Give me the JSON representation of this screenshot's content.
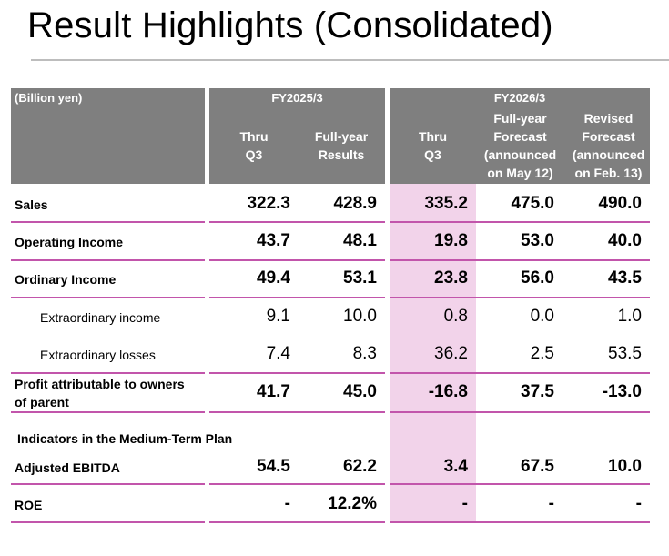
{
  "title": "Result Highlights (Consolidated)",
  "unit_label": "(Billion yen)",
  "fy2025": {
    "period": "FY2025/3",
    "cols": [
      {
        "line1": "Thru",
        "line2": "Q3"
      },
      {
        "line1": "Full-year",
        "line2": "Results"
      }
    ]
  },
  "fy2026": {
    "period": "FY2026/3",
    "cols": [
      {
        "line1": "Thru",
        "line2": "Q3"
      },
      {
        "line1": "Full-year",
        "line2": "Forecast",
        "line3": "(announced",
        "line4": "on May 12)"
      },
      {
        "line1": "Revised",
        "line2": "Forecast",
        "line3": "(announced",
        "line4": "on Feb. 13)"
      }
    ]
  },
  "rows": [
    {
      "label": "Sales",
      "values": [
        "322.3",
        "428.9",
        "335.2",
        "475.0",
        "490.0"
      ]
    },
    {
      "label": "Operating Income",
      "values": [
        "43.7",
        "48.1",
        "19.8",
        "53.0",
        "40.0"
      ]
    },
    {
      "label": "Ordinary Income",
      "values": [
        "49.4",
        "53.1",
        "23.8",
        "56.0",
        "43.5"
      ]
    },
    {
      "label": "Extraordinary income",
      "values": [
        "9.1",
        "10.0",
        "0.8",
        "0.0",
        "1.0"
      ]
    },
    {
      "label": "Extraordinary losses",
      "values": [
        "7.4",
        "8.3",
        "36.2",
        "2.5",
        "53.5"
      ]
    },
    {
      "label_line1": "Profit attributable to owners",
      "label_line2": "of parent",
      "values": [
        "41.7",
        "45.0",
        "-16.8",
        "37.5",
        "-13.0"
      ]
    }
  ],
  "indicators_title": "Indicators in the Medium-Term Plan",
  "indicators": [
    {
      "label": "Adjusted EBITDA",
      "values": [
        "54.5",
        "62.2",
        "3.4",
        "67.5",
        "10.0"
      ]
    },
    {
      "label": "ROE",
      "values": [
        "-",
        "12.2%",
        "-",
        "-",
        "-"
      ]
    }
  ]
}
